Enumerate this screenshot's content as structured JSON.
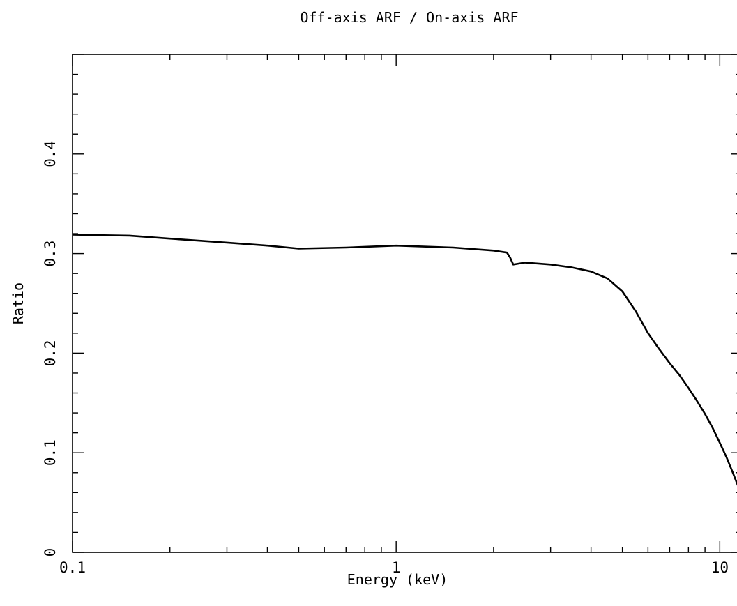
{
  "chart_data": {
    "type": "line",
    "title": "Off-axis ARF / On-axis ARF",
    "xlabel": "Energy (keV)",
    "ylabel": "Ratio",
    "xscale": "log",
    "xlim": [
      0.1,
      11.7
    ],
    "ylim": [
      0,
      0.5
    ],
    "x_ticks": [
      {
        "value": 0.1,
        "label": "0.1"
      },
      {
        "value": 1,
        "label": "1"
      },
      {
        "value": 10,
        "label": "10"
      }
    ],
    "y_ticks": [
      {
        "value": 0,
        "label": "0"
      },
      {
        "value": 0.1,
        "label": "0.1"
      },
      {
        "value": 0.2,
        "label": "0.2"
      },
      {
        "value": 0.3,
        "label": "0.3"
      },
      {
        "value": 0.4,
        "label": "0.4"
      }
    ],
    "grid": false,
    "series": [
      {
        "color": "#000000",
        "x": [
          0.1,
          0.15,
          0.2,
          0.3,
          0.4,
          0.5,
          0.7,
          1.0,
          1.5,
          2.0,
          2.2,
          2.25,
          2.3,
          2.4,
          2.5,
          3.0,
          3.5,
          4.0,
          4.5,
          5.0,
          5.5,
          6.0,
          6.5,
          7.0,
          7.5,
          8.0,
          8.5,
          9.0,
          9.5,
          10.0,
          10.5,
          11.0,
          11.5,
          11.7
        ],
        "y": [
          0.319,
          0.318,
          0.315,
          0.311,
          0.308,
          0.305,
          0.306,
          0.308,
          0.306,
          0.303,
          0.301,
          0.296,
          0.289,
          0.29,
          0.291,
          0.289,
          0.286,
          0.282,
          0.275,
          0.262,
          0.242,
          0.22,
          0.204,
          0.19,
          0.178,
          0.165,
          0.152,
          0.139,
          0.125,
          0.11,
          0.095,
          0.079,
          0.063,
          0.055
        ]
      }
    ]
  }
}
